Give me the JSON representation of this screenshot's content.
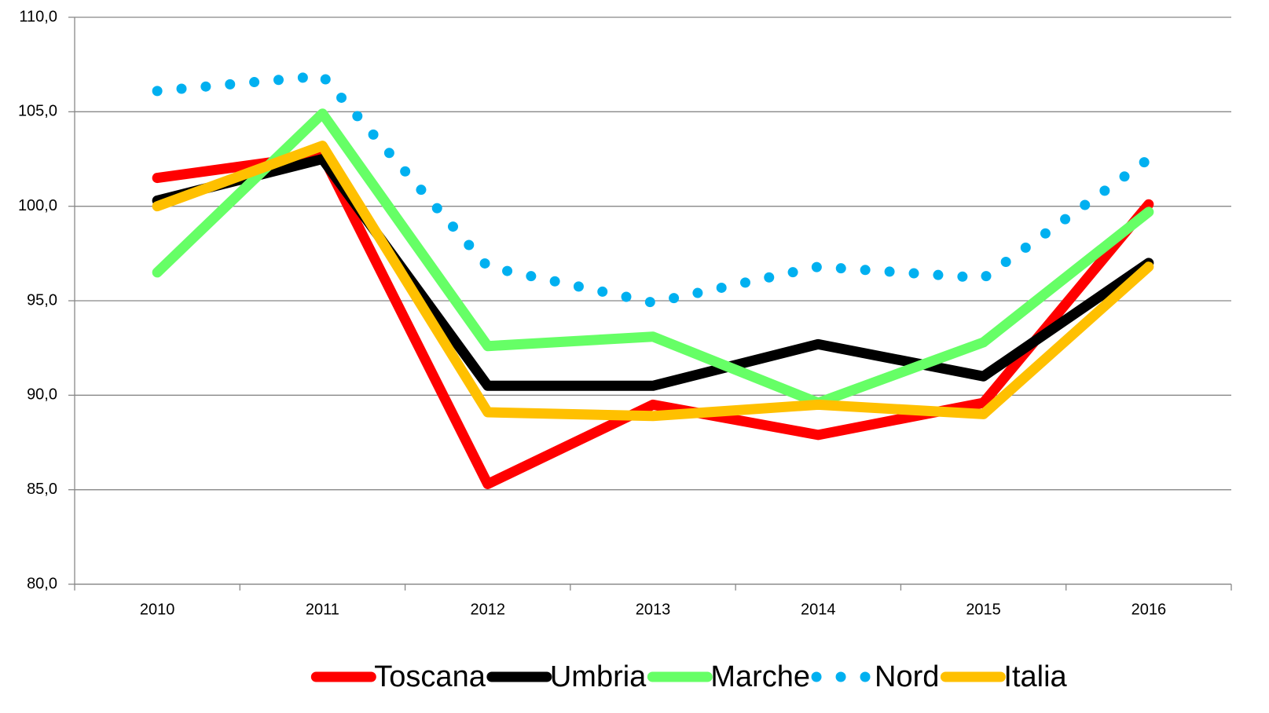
{
  "chart_data": {
    "type": "line",
    "categories": [
      "2010",
      "2011",
      "2012",
      "2013",
      "2014",
      "2015",
      "2016"
    ],
    "series": [
      {
        "name": "Toscana",
        "color": "#ff0000",
        "values": [
          101.5,
          102.7,
          85.3,
          89.5,
          87.9,
          89.6,
          100.1
        ]
      },
      {
        "name": "Umbria",
        "color": "#000000",
        "values": [
          100.3,
          102.5,
          90.5,
          90.5,
          92.7,
          91.0,
          97.0
        ]
      },
      {
        "name": "Marche",
        "color": "#66ff66",
        "values": [
          96.5,
          104.9,
          92.6,
          93.1,
          89.6,
          92.8,
          99.7
        ]
      },
      {
        "name": "Nord",
        "color": "#00b0f0",
        "dotted": true,
        "values": [
          106.1,
          106.9,
          96.8,
          94.9,
          96.8,
          96.2,
          102.5
        ]
      },
      {
        "name": "Italia",
        "color": "#ffc000",
        "values": [
          100.0,
          103.2,
          89.1,
          88.9,
          89.5,
          89.0,
          96.8
        ]
      }
    ],
    "ylim": [
      80,
      110
    ],
    "yticks": [
      {
        "value": 80,
        "label": "80,0"
      },
      {
        "value": 85,
        "label": "85,0"
      },
      {
        "value": 90,
        "label": "90,0"
      },
      {
        "value": 95,
        "label": "95,0"
      },
      {
        "value": 100,
        "label": "100,0"
      },
      {
        "value": 105,
        "label": "105,0"
      },
      {
        "value": 110,
        "label": "110,0"
      }
    ],
    "grid": true,
    "legend": "bottom"
  }
}
